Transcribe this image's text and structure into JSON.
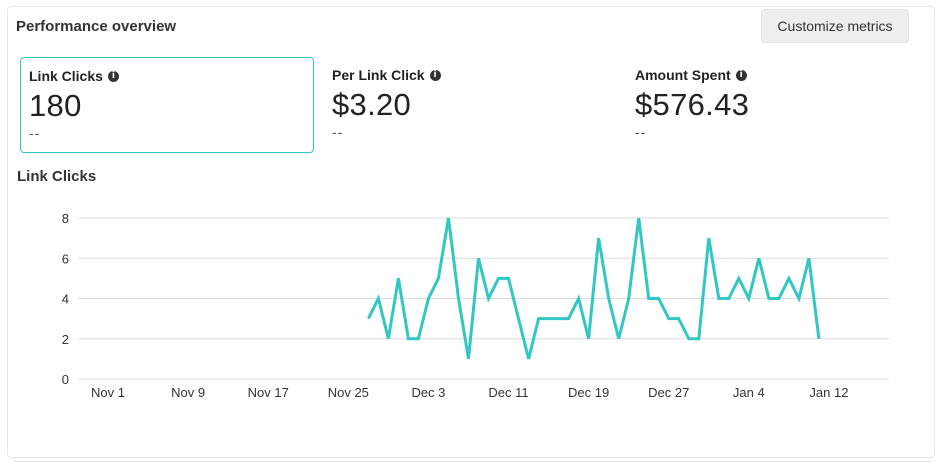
{
  "panel": {
    "title": "Performance overview",
    "customize_label": "Customize metrics"
  },
  "metrics": [
    {
      "label": "Link Clicks",
      "value": "180",
      "sub": "--",
      "active": true
    },
    {
      "label": "Per Link Click",
      "value": "$3.20",
      "sub": "--",
      "active": false
    },
    {
      "label": "Amount Spent",
      "value": "$576.43",
      "sub": "--",
      "active": false
    }
  ],
  "colors": {
    "accent": "#33c7c4",
    "grid": "#dddddd"
  },
  "chart_data": {
    "type": "line",
    "title": "Link Clicks",
    "xlabel": "",
    "ylabel": "",
    "ylim": [
      0,
      8
    ],
    "yticks": [
      0,
      2,
      4,
      6,
      8
    ],
    "xlim": [
      "2023-10-29",
      "2024-01-18"
    ],
    "xticks": [
      "Nov 1",
      "Nov 9",
      "Nov 17",
      "Nov 25",
      "Dec 3",
      "Dec 11",
      "Dec 19",
      "Dec 27",
      "Jan 4",
      "Jan 12"
    ],
    "xtick_dates": [
      "2023-11-01",
      "2023-11-09",
      "2023-11-17",
      "2023-11-25",
      "2023-12-03",
      "2023-12-11",
      "2023-12-19",
      "2023-12-27",
      "2024-01-04",
      "2024-01-12"
    ],
    "grid": true,
    "series": [
      {
        "x": [
          "2023-11-27",
          "2023-11-28",
          "2023-11-29",
          "2023-11-30",
          "2023-12-01",
          "2023-12-02",
          "2023-12-03",
          "2023-12-04",
          "2023-12-05",
          "2023-12-06",
          "2023-12-07",
          "2023-12-08",
          "2023-12-09",
          "2023-12-10",
          "2023-12-11",
          "2023-12-12",
          "2023-12-13",
          "2023-12-14",
          "2023-12-15",
          "2023-12-16",
          "2023-12-17",
          "2023-12-18",
          "2023-12-19",
          "2023-12-20",
          "2023-12-21",
          "2023-12-22",
          "2023-12-23",
          "2023-12-24",
          "2023-12-25",
          "2023-12-26",
          "2023-12-27",
          "2023-12-28",
          "2023-12-29",
          "2023-12-30",
          "2023-12-31",
          "2024-01-01",
          "2024-01-02",
          "2024-01-03",
          "2024-01-04",
          "2024-01-05",
          "2024-01-06",
          "2024-01-07",
          "2024-01-08",
          "2024-01-09",
          "2024-01-10",
          "2024-01-11"
        ],
        "values": [
          3,
          4,
          2,
          5,
          2,
          2,
          4,
          5,
          8,
          4,
          1,
          6,
          4,
          5,
          5,
          3,
          1,
          3,
          3,
          3,
          3,
          4,
          2,
          7,
          4,
          2,
          4,
          8,
          4,
          4,
          3,
          3,
          2,
          2,
          7,
          4,
          4,
          5,
          4,
          6,
          4,
          4,
          5,
          4,
          6,
          2
        ]
      }
    ]
  }
}
